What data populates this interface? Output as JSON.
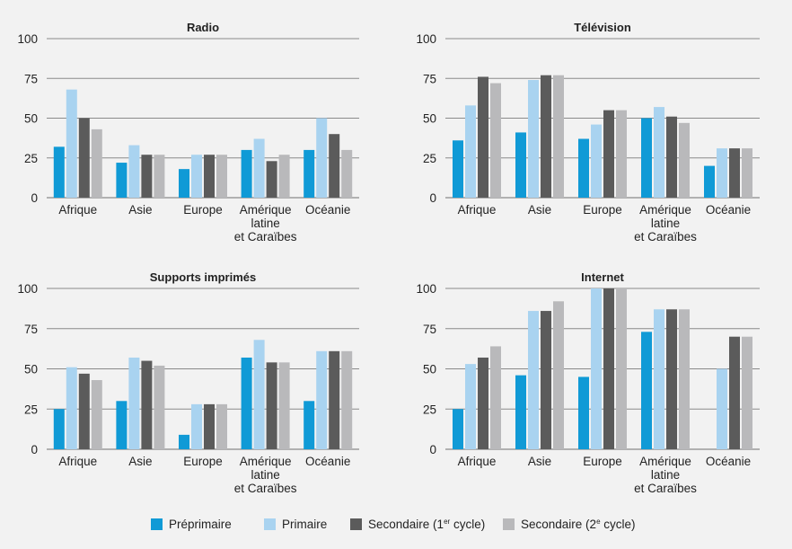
{
  "colors": {
    "preprimaire": "#109ad6",
    "primaire": "#a9d3f0",
    "secondaire1": "#5b5b5b",
    "secondaire2": "#b9b9bb",
    "grid": "#8a8a8a",
    "text": "#222222"
  },
  "legend": {
    "preprimaire": "Préprimaire",
    "primaire": "Primaire",
    "secondaire1_prefix": "Secondaire (1",
    "secondaire1_sup": "er",
    "secondaire1_suffix": " cycle)",
    "secondaire2_prefix": "Secondaire (2",
    "secondaire2_sup": "e",
    "secondaire2_suffix": " cycle)"
  },
  "chart_data": [
    {
      "type": "bar",
      "title": "Radio",
      "categories": [
        [
          "Afrique"
        ],
        [
          "Asie"
        ],
        [
          "Europe"
        ],
        [
          "Amérique",
          "latine",
          "et Caraïbes"
        ],
        [
          "Océanie"
        ]
      ],
      "yticks": [
        "100",
        "75",
        "50",
        "25",
        "0"
      ],
      "ylim": [
        0,
        100
      ],
      "series": [
        {
          "name": "Préprimaire",
          "values": [
            32,
            22,
            18,
            30,
            30
          ]
        },
        {
          "name": "Primaire",
          "values": [
            68,
            33,
            27,
            37,
            50
          ]
        },
        {
          "name": "Secondaire (1er cycle)",
          "values": [
            50,
            27,
            27,
            23,
            40
          ]
        },
        {
          "name": "Secondaire (2e cycle)",
          "values": [
            43,
            27,
            27,
            27,
            30
          ]
        }
      ]
    },
    {
      "type": "bar",
      "title": "Télévision",
      "categories": [
        [
          "Afrique"
        ],
        [
          "Asie"
        ],
        [
          "Europe"
        ],
        [
          "Amérique",
          "latine",
          "et Caraïbes"
        ],
        [
          "Océanie"
        ]
      ],
      "yticks": [
        "100",
        "75",
        "50",
        "25",
        "0"
      ],
      "ylim": [
        0,
        100
      ],
      "series": [
        {
          "name": "Préprimaire",
          "values": [
            36,
            41,
            37,
            50,
            20
          ]
        },
        {
          "name": "Primaire",
          "values": [
            58,
            74,
            46,
            57,
            31
          ]
        },
        {
          "name": "Secondaire (1er cycle)",
          "values": [
            76,
            77,
            55,
            51,
            31
          ]
        },
        {
          "name": "Secondaire (2e cycle)",
          "values": [
            72,
            77,
            55,
            47,
            31
          ]
        }
      ]
    },
    {
      "type": "bar",
      "title": "Supports imprimés",
      "categories": [
        [
          "Afrique"
        ],
        [
          "Asie"
        ],
        [
          "Europe"
        ],
        [
          "Amérique",
          "latine",
          "et Caraïbes"
        ],
        [
          "Océanie"
        ]
      ],
      "yticks": [
        "100",
        "75",
        "50",
        "25",
        "0"
      ],
      "ylim": [
        0,
        100
      ],
      "series": [
        {
          "name": "Préprimaire",
          "values": [
            25,
            30,
            9,
            57,
            30
          ]
        },
        {
          "name": "Primaire",
          "values": [
            51,
            57,
            28,
            68,
            61
          ]
        },
        {
          "name": "Secondaire (1er cycle)",
          "values": [
            47,
            55,
            28,
            54,
            61
          ]
        },
        {
          "name": "Secondaire (2e cycle)",
          "values": [
            43,
            52,
            28,
            54,
            61
          ]
        }
      ]
    },
    {
      "type": "bar",
      "title": "Internet",
      "categories": [
        [
          "Afrique"
        ],
        [
          "Asie"
        ],
        [
          "Europe"
        ],
        [
          "Amérique",
          "latine",
          "et Caraïbes"
        ],
        [
          "Océanie"
        ]
      ],
      "yticks": [
        "100",
        "75",
        "50",
        "25",
        "0"
      ],
      "ylim": [
        0,
        100
      ],
      "series": [
        {
          "name": "Préprimaire",
          "values": [
            25,
            46,
            45,
            73,
            0
          ]
        },
        {
          "name": "Primaire",
          "values": [
            53,
            86,
            100,
            87,
            50
          ]
        },
        {
          "name": "Secondaire (1er cycle)",
          "values": [
            57,
            86,
            100,
            87,
            70
          ]
        },
        {
          "name": "Secondaire (2e cycle)",
          "values": [
            64,
            92,
            100,
            87,
            70
          ]
        }
      ]
    }
  ]
}
